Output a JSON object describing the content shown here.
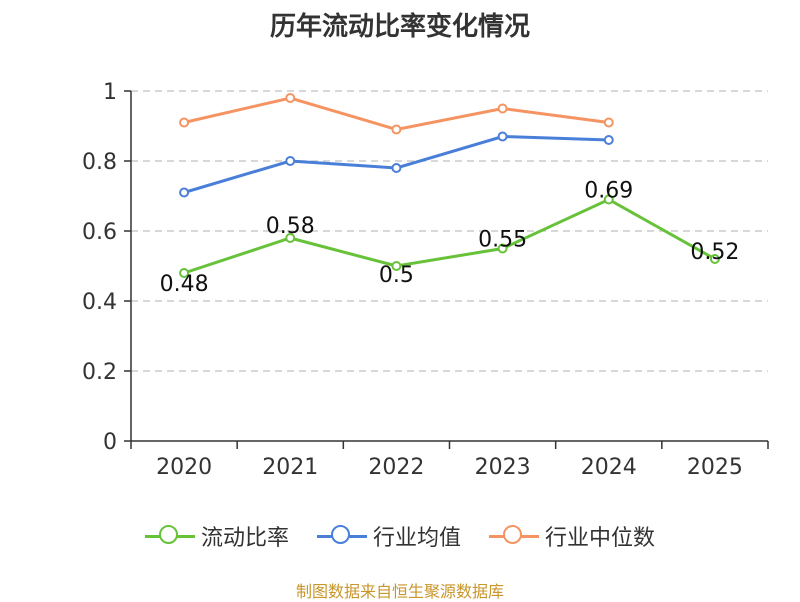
{
  "title": "历年流动比率变化情况",
  "source": "制图数据来自恒生聚源数据库",
  "chart_data": {
    "type": "line",
    "title": "历年流动比率变化情况",
    "categories": [
      "2020",
      "2021",
      "2022",
      "2023",
      "2024",
      "2025"
    ],
    "ylim": [
      0,
      1
    ],
    "yticks": [
      "0",
      "0.2",
      "0.4",
      "0.6",
      "0.8",
      "1"
    ],
    "yvalues": [
      0,
      0.2,
      0.4,
      0.6,
      0.8,
      1
    ],
    "grid": true,
    "legend_position": "bottom",
    "series": [
      {
        "name": "流动比率",
        "color": "#67c23a",
        "values": [
          0.48,
          0.58,
          0.5,
          0.55,
          0.69,
          0.52
        ],
        "labels": [
          "0.48",
          "0.58",
          "0.5",
          "0.55",
          "0.69",
          "0.52"
        ]
      },
      {
        "name": "行业均值",
        "color": "#4a7fd9",
        "values": [
          0.71,
          0.8,
          0.78,
          0.87,
          0.86,
          null
        ]
      },
      {
        "name": "行业中位数",
        "color": "#f59462",
        "values": [
          0.91,
          0.98,
          0.89,
          0.95,
          0.91,
          null
        ]
      }
    ]
  }
}
